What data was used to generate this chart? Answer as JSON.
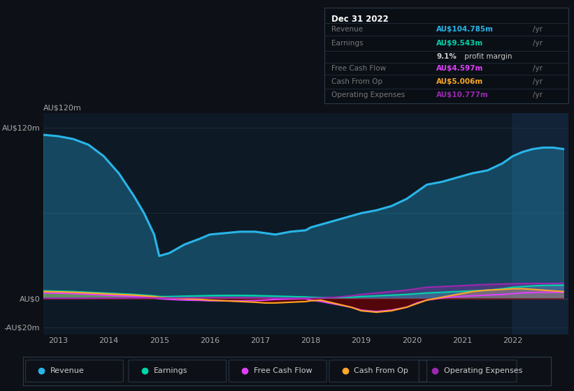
{
  "bg_color": "#0d1117",
  "plot_bg_color": "#0d1a26",
  "years": [
    2012.7,
    2013.0,
    2013.3,
    2013.6,
    2013.9,
    2014.2,
    2014.5,
    2014.7,
    2014.9,
    2015.0,
    2015.2,
    2015.5,
    2015.8,
    2016.0,
    2016.3,
    2016.6,
    2016.9,
    2017.1,
    2017.3,
    2017.6,
    2017.9,
    2018.0,
    2018.2,
    2018.5,
    2018.8,
    2019.0,
    2019.3,
    2019.6,
    2019.9,
    2020.1,
    2020.3,
    2020.6,
    2020.9,
    2021.2,
    2021.5,
    2021.8,
    2022.0,
    2022.2,
    2022.4,
    2022.6,
    2022.8,
    2023.0
  ],
  "revenue": [
    115,
    114,
    112,
    108,
    100,
    88,
    72,
    60,
    45,
    30,
    32,
    38,
    42,
    45,
    46,
    47,
    47,
    46,
    45,
    47,
    48,
    50,
    52,
    55,
    58,
    60,
    62,
    65,
    70,
    75,
    80,
    82,
    85,
    88,
    90,
    95,
    100,
    103,
    105,
    106,
    106,
    105
  ],
  "earnings": [
    5.5,
    5.3,
    5.0,
    4.5,
    4.0,
    3.5,
    3.0,
    2.5,
    2.0,
    1.5,
    1.5,
    1.8,
    2.0,
    2.2,
    2.3,
    2.3,
    2.2,
    2.0,
    1.8,
    1.5,
    1.2,
    1.0,
    0.8,
    0.8,
    1.0,
    1.5,
    2.0,
    2.5,
    3.0,
    3.5,
    4.0,
    4.5,
    5.0,
    5.5,
    6.0,
    7.0,
    8.0,
    8.5,
    9.0,
    9.3,
    9.4,
    9.5
  ],
  "free_cash_flow": [
    4.0,
    3.8,
    3.5,
    3.0,
    2.5,
    2.0,
    1.5,
    1.0,
    0.5,
    0.0,
    -0.5,
    -1.0,
    -1.2,
    -1.5,
    -1.5,
    -1.5,
    -1.3,
    -1.0,
    -0.5,
    -0.2,
    0.0,
    -1.0,
    -2.0,
    -4.0,
    -6.0,
    -8.0,
    -9.0,
    -8.0,
    -6.0,
    -3.0,
    -1.0,
    0.5,
    1.5,
    2.0,
    2.5,
    3.0,
    3.5,
    4.0,
    4.3,
    4.5,
    4.5,
    4.5
  ],
  "cash_from_op": [
    5.0,
    4.8,
    4.5,
    4.0,
    3.5,
    3.0,
    2.5,
    2.0,
    1.5,
    1.0,
    0.5,
    0.0,
    -0.5,
    -1.0,
    -1.5,
    -2.0,
    -2.5,
    -3.0,
    -3.0,
    -2.5,
    -2.0,
    -1.5,
    -1.0,
    -3.5,
    -6.0,
    -8.5,
    -9.5,
    -8.5,
    -6.0,
    -3.5,
    -1.0,
    1.0,
    3.0,
    5.0,
    6.0,
    6.5,
    7.0,
    7.0,
    6.5,
    6.0,
    5.5,
    5.0
  ],
  "operating_expenses": [
    0.3,
    0.3,
    0.3,
    0.3,
    0.4,
    0.4,
    0.5,
    0.5,
    0.5,
    0.5,
    0.5,
    0.6,
    0.7,
    0.8,
    0.8,
    0.8,
    0.7,
    0.6,
    0.5,
    0.4,
    0.3,
    0.3,
    0.5,
    1.0,
    2.0,
    3.0,
    4.0,
    5.0,
    6.0,
    7.0,
    8.0,
    8.5,
    9.0,
    9.5,
    10.0,
    10.3,
    10.5,
    10.6,
    10.7,
    10.7,
    10.7,
    10.8
  ],
  "revenue_color": "#29b5e8",
  "earnings_color": "#00d4aa",
  "free_cash_flow_color": "#e040fb",
  "cash_from_op_color": "#ffa726",
  "operating_expenses_color": "#9c27b0",
  "info_box": {
    "date": "Dec 31 2022",
    "revenue_label": "Revenue",
    "revenue_value": "AU$104.785m",
    "revenue_unit": "/yr",
    "revenue_color": "#29b5e8",
    "earnings_label": "Earnings",
    "earnings_value": "AU$9.543m",
    "earnings_unit": "/yr",
    "earnings_color": "#00d4aa",
    "margin_bold": "9.1%",
    "margin_rest": " profit margin",
    "fcf_label": "Free Cash Flow",
    "fcf_value": "AU$4.597m",
    "fcf_unit": "/yr",
    "fcf_color": "#e040fb",
    "cfop_label": "Cash From Op",
    "cfop_value": "AU$5.006m",
    "cfop_unit": "/yr",
    "cfop_color": "#ffa726",
    "opex_label": "Operating Expenses",
    "opex_value": "AU$10.777m",
    "opex_unit": "/yr",
    "opex_color": "#9c27b0"
  },
  "legend_items": [
    "Revenue",
    "Earnings",
    "Free Cash Flow",
    "Cash From Op",
    "Operating Expenses"
  ],
  "legend_colors": [
    "#29b5e8",
    "#00d4aa",
    "#e040fb",
    "#ffa726",
    "#9c27b0"
  ],
  "xlim_left": 2012.7,
  "xlim_right": 2023.1,
  "ylim_bottom": -25,
  "ylim_top": 130
}
